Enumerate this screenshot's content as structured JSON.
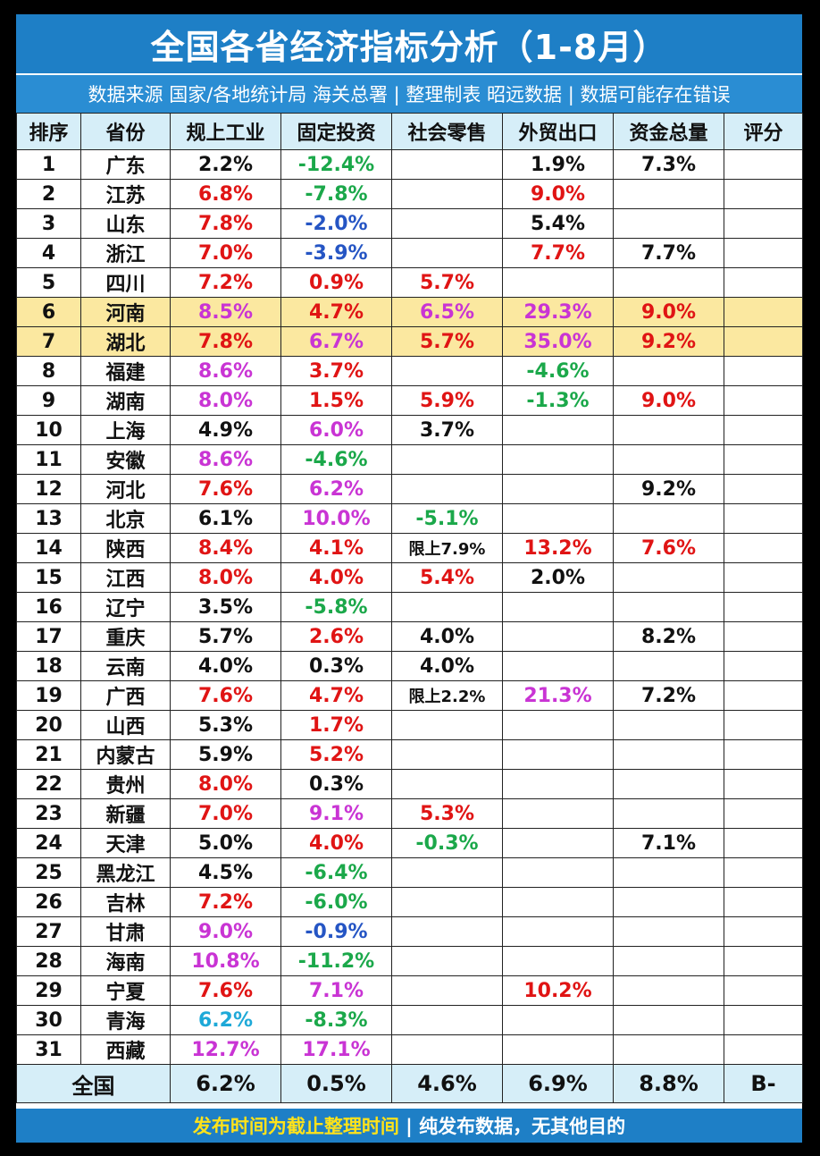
{
  "title": "全国各省经济指标分析（1-8月）",
  "subtitle": "数据来源 国家/各地统计局 海关总署 | 整理制表 昭远数据 | 数据可能存在错误",
  "headers": [
    "排序",
    "省份",
    "规上工业",
    "固定投资",
    "社会零售",
    "外贸出口",
    "资金总量",
    "评分"
  ],
  "colors": {
    "red": "#e01414",
    "green": "#1ba84a",
    "blue": "#2555c4",
    "magenta": "#c934d4",
    "cyan": "#1ea9d8",
    "black": "#111111",
    "highlight": "#fbe8a0",
    "header_bg": "#d6eef8",
    "title_bg": "#1e7fc6"
  },
  "rows": [
    {
      "rank": "1",
      "province": "广东",
      "cells": [
        {
          "v": "2.2%",
          "c": "black"
        },
        {
          "v": "-12.4%",
          "c": "green"
        },
        {
          "v": "",
          "c": "black"
        },
        {
          "v": "1.9%",
          "c": "black"
        },
        {
          "v": "7.3%",
          "c": "black"
        },
        {
          "v": "",
          "c": "black"
        }
      ]
    },
    {
      "rank": "2",
      "province": "江苏",
      "cells": [
        {
          "v": "6.8%",
          "c": "red"
        },
        {
          "v": "-7.8%",
          "c": "green"
        },
        {
          "v": "",
          "c": "black"
        },
        {
          "v": "9.0%",
          "c": "red"
        },
        {
          "v": "",
          "c": "black"
        },
        {
          "v": "",
          "c": "black"
        }
      ]
    },
    {
      "rank": "3",
      "province": "山东",
      "cells": [
        {
          "v": "7.8%",
          "c": "red"
        },
        {
          "v": "-2.0%",
          "c": "blue"
        },
        {
          "v": "",
          "c": "black"
        },
        {
          "v": "5.4%",
          "c": "black"
        },
        {
          "v": "",
          "c": "black"
        },
        {
          "v": "",
          "c": "black"
        }
      ]
    },
    {
      "rank": "4",
      "province": "浙江",
      "cells": [
        {
          "v": "7.0%",
          "c": "red"
        },
        {
          "v": "-3.9%",
          "c": "blue"
        },
        {
          "v": "",
          "c": "black"
        },
        {
          "v": "7.7%",
          "c": "red"
        },
        {
          "v": "7.7%",
          "c": "black"
        },
        {
          "v": "",
          "c": "black"
        }
      ]
    },
    {
      "rank": "5",
      "province": "四川",
      "cells": [
        {
          "v": "7.2%",
          "c": "red"
        },
        {
          "v": "0.9%",
          "c": "red"
        },
        {
          "v": "5.7%",
          "c": "red"
        },
        {
          "v": "",
          "c": "black"
        },
        {
          "v": "",
          "c": "black"
        },
        {
          "v": "",
          "c": "black"
        }
      ]
    },
    {
      "rank": "6",
      "province": "河南",
      "highlight": true,
      "cells": [
        {
          "v": "8.5%",
          "c": "magenta"
        },
        {
          "v": "4.7%",
          "c": "red"
        },
        {
          "v": "6.5%",
          "c": "magenta"
        },
        {
          "v": "29.3%",
          "c": "magenta"
        },
        {
          "v": "9.0%",
          "c": "red"
        },
        {
          "v": "",
          "c": "black"
        }
      ]
    },
    {
      "rank": "7",
      "province": "湖北",
      "highlight": true,
      "cells": [
        {
          "v": "7.8%",
          "c": "red"
        },
        {
          "v": "6.7%",
          "c": "magenta"
        },
        {
          "v": "5.7%",
          "c": "red"
        },
        {
          "v": "35.0%",
          "c": "magenta"
        },
        {
          "v": "9.2%",
          "c": "red"
        },
        {
          "v": "",
          "c": "black"
        }
      ]
    },
    {
      "rank": "8",
      "province": "福建",
      "cells": [
        {
          "v": "8.6%",
          "c": "magenta"
        },
        {
          "v": "3.7%",
          "c": "red"
        },
        {
          "v": "",
          "c": "black"
        },
        {
          "v": "-4.6%",
          "c": "green"
        },
        {
          "v": "",
          "c": "black"
        },
        {
          "v": "",
          "c": "black"
        }
      ]
    },
    {
      "rank": "9",
      "province": "湖南",
      "cells": [
        {
          "v": "8.0%",
          "c": "magenta"
        },
        {
          "v": "1.5%",
          "c": "red"
        },
        {
          "v": "5.9%",
          "c": "red"
        },
        {
          "v": "-1.3%",
          "c": "green"
        },
        {
          "v": "9.0%",
          "c": "red"
        },
        {
          "v": "",
          "c": "black"
        }
      ]
    },
    {
      "rank": "10",
      "province": "上海",
      "cells": [
        {
          "v": "4.9%",
          "c": "black"
        },
        {
          "v": "6.0%",
          "c": "magenta"
        },
        {
          "v": "3.7%",
          "c": "black"
        },
        {
          "v": "",
          "c": "black"
        },
        {
          "v": "",
          "c": "black"
        },
        {
          "v": "",
          "c": "black"
        }
      ]
    },
    {
      "rank": "11",
      "province": "安徽",
      "cells": [
        {
          "v": "8.6%",
          "c": "magenta"
        },
        {
          "v": "-4.6%",
          "c": "green"
        },
        {
          "v": "",
          "c": "black"
        },
        {
          "v": "",
          "c": "black"
        },
        {
          "v": "",
          "c": "black"
        },
        {
          "v": "",
          "c": "black"
        }
      ]
    },
    {
      "rank": "12",
      "province": "河北",
      "cells": [
        {
          "v": "7.6%",
          "c": "red"
        },
        {
          "v": "6.2%",
          "c": "magenta"
        },
        {
          "v": "",
          "c": "black"
        },
        {
          "v": "",
          "c": "black"
        },
        {
          "v": "9.2%",
          "c": "black"
        },
        {
          "v": "",
          "c": "black"
        }
      ]
    },
    {
      "rank": "13",
      "province": "北京",
      "cells": [
        {
          "v": "6.1%",
          "c": "black"
        },
        {
          "v": "10.0%",
          "c": "magenta"
        },
        {
          "v": "-5.1%",
          "c": "green"
        },
        {
          "v": "",
          "c": "black"
        },
        {
          "v": "",
          "c": "black"
        },
        {
          "v": "",
          "c": "black"
        }
      ]
    },
    {
      "rank": "14",
      "province": "陕西",
      "cells": [
        {
          "v": "8.4%",
          "c": "red"
        },
        {
          "v": "4.1%",
          "c": "red"
        },
        {
          "v": "限上7.9%",
          "c": "black",
          "small": true
        },
        {
          "v": "13.2%",
          "c": "red"
        },
        {
          "v": "7.6%",
          "c": "red"
        },
        {
          "v": "",
          "c": "black"
        }
      ]
    },
    {
      "rank": "15",
      "province": "江西",
      "cells": [
        {
          "v": "8.0%",
          "c": "red"
        },
        {
          "v": "4.0%",
          "c": "red"
        },
        {
          "v": "5.4%",
          "c": "red"
        },
        {
          "v": "2.0%",
          "c": "black"
        },
        {
          "v": "",
          "c": "black"
        },
        {
          "v": "",
          "c": "black"
        }
      ]
    },
    {
      "rank": "16",
      "province": "辽宁",
      "cells": [
        {
          "v": "3.5%",
          "c": "black"
        },
        {
          "v": "-5.8%",
          "c": "green"
        },
        {
          "v": "",
          "c": "black"
        },
        {
          "v": "",
          "c": "black"
        },
        {
          "v": "",
          "c": "black"
        },
        {
          "v": "",
          "c": "black"
        }
      ]
    },
    {
      "rank": "17",
      "province": "重庆",
      "cells": [
        {
          "v": "5.7%",
          "c": "black"
        },
        {
          "v": "2.6%",
          "c": "red"
        },
        {
          "v": "4.0%",
          "c": "black"
        },
        {
          "v": "",
          "c": "black"
        },
        {
          "v": "8.2%",
          "c": "black"
        },
        {
          "v": "",
          "c": "black"
        }
      ]
    },
    {
      "rank": "18",
      "province": "云南",
      "cells": [
        {
          "v": "4.0%",
          "c": "black"
        },
        {
          "v": "0.3%",
          "c": "black"
        },
        {
          "v": "4.0%",
          "c": "black"
        },
        {
          "v": "",
          "c": "black"
        },
        {
          "v": "",
          "c": "black"
        },
        {
          "v": "",
          "c": "black"
        }
      ]
    },
    {
      "rank": "19",
      "province": "广西",
      "cells": [
        {
          "v": "7.6%",
          "c": "red"
        },
        {
          "v": "4.7%",
          "c": "red"
        },
        {
          "v": "限上2.2%",
          "c": "black",
          "small": true
        },
        {
          "v": "21.3%",
          "c": "magenta"
        },
        {
          "v": "7.2%",
          "c": "black"
        },
        {
          "v": "",
          "c": "black"
        }
      ]
    },
    {
      "rank": "20",
      "province": "山西",
      "cells": [
        {
          "v": "5.3%",
          "c": "black"
        },
        {
          "v": "1.7%",
          "c": "red"
        },
        {
          "v": "",
          "c": "black"
        },
        {
          "v": "",
          "c": "black"
        },
        {
          "v": "",
          "c": "black"
        },
        {
          "v": "",
          "c": "black"
        }
      ]
    },
    {
      "rank": "21",
      "province": "内蒙古",
      "cells": [
        {
          "v": "5.9%",
          "c": "black"
        },
        {
          "v": "5.2%",
          "c": "red"
        },
        {
          "v": "",
          "c": "black"
        },
        {
          "v": "",
          "c": "black"
        },
        {
          "v": "",
          "c": "black"
        },
        {
          "v": "",
          "c": "black"
        }
      ]
    },
    {
      "rank": "22",
      "province": "贵州",
      "cells": [
        {
          "v": "8.0%",
          "c": "red"
        },
        {
          "v": "0.3%",
          "c": "black"
        },
        {
          "v": "",
          "c": "black"
        },
        {
          "v": "",
          "c": "black"
        },
        {
          "v": "",
          "c": "black"
        },
        {
          "v": "",
          "c": "black"
        }
      ]
    },
    {
      "rank": "23",
      "province": "新疆",
      "cells": [
        {
          "v": "7.0%",
          "c": "red"
        },
        {
          "v": "9.1%",
          "c": "magenta"
        },
        {
          "v": "5.3%",
          "c": "red"
        },
        {
          "v": "",
          "c": "black"
        },
        {
          "v": "",
          "c": "black"
        },
        {
          "v": "",
          "c": "black"
        }
      ]
    },
    {
      "rank": "24",
      "province": "天津",
      "cells": [
        {
          "v": "5.0%",
          "c": "black"
        },
        {
          "v": "4.0%",
          "c": "red"
        },
        {
          "v": "-0.3%",
          "c": "green"
        },
        {
          "v": "",
          "c": "black"
        },
        {
          "v": "7.1%",
          "c": "black"
        },
        {
          "v": "",
          "c": "black"
        }
      ]
    },
    {
      "rank": "25",
      "province": "黑龙江",
      "cells": [
        {
          "v": "4.5%",
          "c": "black"
        },
        {
          "v": "-6.4%",
          "c": "green"
        },
        {
          "v": "",
          "c": "black"
        },
        {
          "v": "",
          "c": "black"
        },
        {
          "v": "",
          "c": "black"
        },
        {
          "v": "",
          "c": "black"
        }
      ]
    },
    {
      "rank": "26",
      "province": "吉林",
      "cells": [
        {
          "v": "7.2%",
          "c": "red"
        },
        {
          "v": "-6.0%",
          "c": "green"
        },
        {
          "v": "",
          "c": "black"
        },
        {
          "v": "",
          "c": "black"
        },
        {
          "v": "",
          "c": "black"
        },
        {
          "v": "",
          "c": "black"
        }
      ]
    },
    {
      "rank": "27",
      "province": "甘肃",
      "cells": [
        {
          "v": "9.0%",
          "c": "magenta"
        },
        {
          "v": "-0.9%",
          "c": "blue"
        },
        {
          "v": "",
          "c": "black"
        },
        {
          "v": "",
          "c": "black"
        },
        {
          "v": "",
          "c": "black"
        },
        {
          "v": "",
          "c": "black"
        }
      ]
    },
    {
      "rank": "28",
      "province": "海南",
      "cells": [
        {
          "v": "10.8%",
          "c": "magenta"
        },
        {
          "v": "-11.2%",
          "c": "green"
        },
        {
          "v": "",
          "c": "black"
        },
        {
          "v": "",
          "c": "black"
        },
        {
          "v": "",
          "c": "black"
        },
        {
          "v": "",
          "c": "black"
        }
      ]
    },
    {
      "rank": "29",
      "province": "宁夏",
      "cells": [
        {
          "v": "7.6%",
          "c": "red"
        },
        {
          "v": "7.1%",
          "c": "magenta"
        },
        {
          "v": "",
          "c": "black"
        },
        {
          "v": "10.2%",
          "c": "red"
        },
        {
          "v": "",
          "c": "black"
        },
        {
          "v": "",
          "c": "black"
        }
      ]
    },
    {
      "rank": "30",
      "province": "青海",
      "cells": [
        {
          "v": "6.2%",
          "c": "cyan"
        },
        {
          "v": "-8.3%",
          "c": "green"
        },
        {
          "v": "",
          "c": "black"
        },
        {
          "v": "",
          "c": "black"
        },
        {
          "v": "",
          "c": "black"
        },
        {
          "v": "",
          "c": "black"
        }
      ]
    },
    {
      "rank": "31",
      "province": "西藏",
      "cells": [
        {
          "v": "12.7%",
          "c": "magenta"
        },
        {
          "v": "17.1%",
          "c": "magenta"
        },
        {
          "v": "",
          "c": "black"
        },
        {
          "v": "",
          "c": "black"
        },
        {
          "v": "",
          "c": "black"
        },
        {
          "v": "",
          "c": "black"
        }
      ]
    }
  ],
  "total": {
    "label": "全国",
    "values": [
      "6.2%",
      "0.5%",
      "4.6%",
      "6.9%",
      "8.8%",
      "B-"
    ]
  },
  "footer": {
    "highlight": "发布时间为截止整理时间",
    "rest": " | 纯发布数据，无其他目的"
  }
}
